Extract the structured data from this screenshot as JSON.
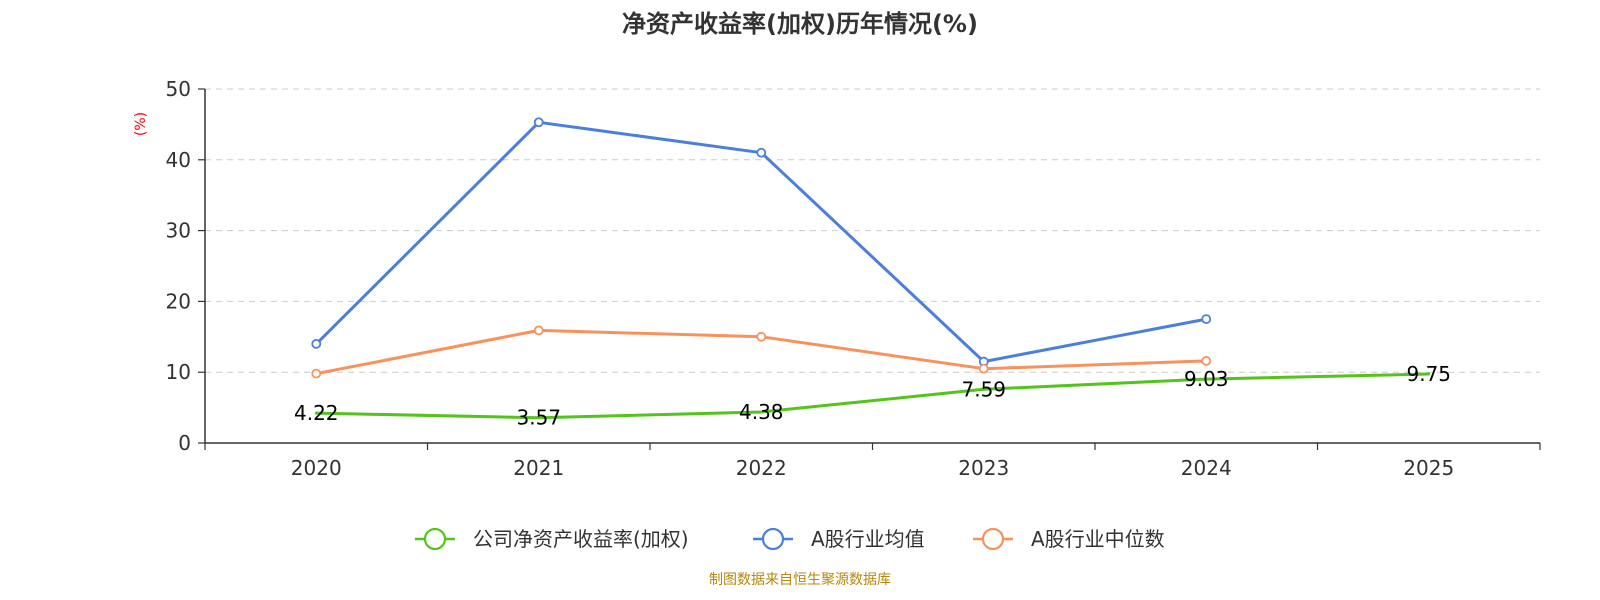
{
  "chart_data": {
    "type": "line",
    "title": "净资产收益率(加权)历年情况(%)",
    "ylabel": "(%)",
    "xlabel": "",
    "categories": [
      "2020",
      "2021",
      "2022",
      "2023",
      "2024",
      "2025"
    ],
    "ylim": [
      0,
      50
    ],
    "yticks": [
      0,
      10,
      20,
      30,
      40,
      50
    ],
    "grid": true,
    "legend_position": "bottom",
    "series": [
      {
        "name": "公司净资产收益率(加权)",
        "color": "#52c41a",
        "values": [
          4.22,
          3.57,
          4.38,
          7.59,
          9.03,
          9.75
        ],
        "labels": [
          "4.22",
          "3.57",
          "4.38",
          "7.59",
          "9.03",
          "9.75"
        ]
      },
      {
        "name": "A股行业均值",
        "color": "#4a7fdc",
        "values": [
          14.0,
          45.3,
          41.0,
          11.5,
          17.5,
          null
        ]
      },
      {
        "name": "A股行业中位数",
        "color": "#f7925c",
        "values": [
          9.8,
          15.9,
          15.0,
          10.5,
          11.6,
          null
        ]
      }
    ],
    "source": "制图数据来自恒生聚源数据库"
  }
}
